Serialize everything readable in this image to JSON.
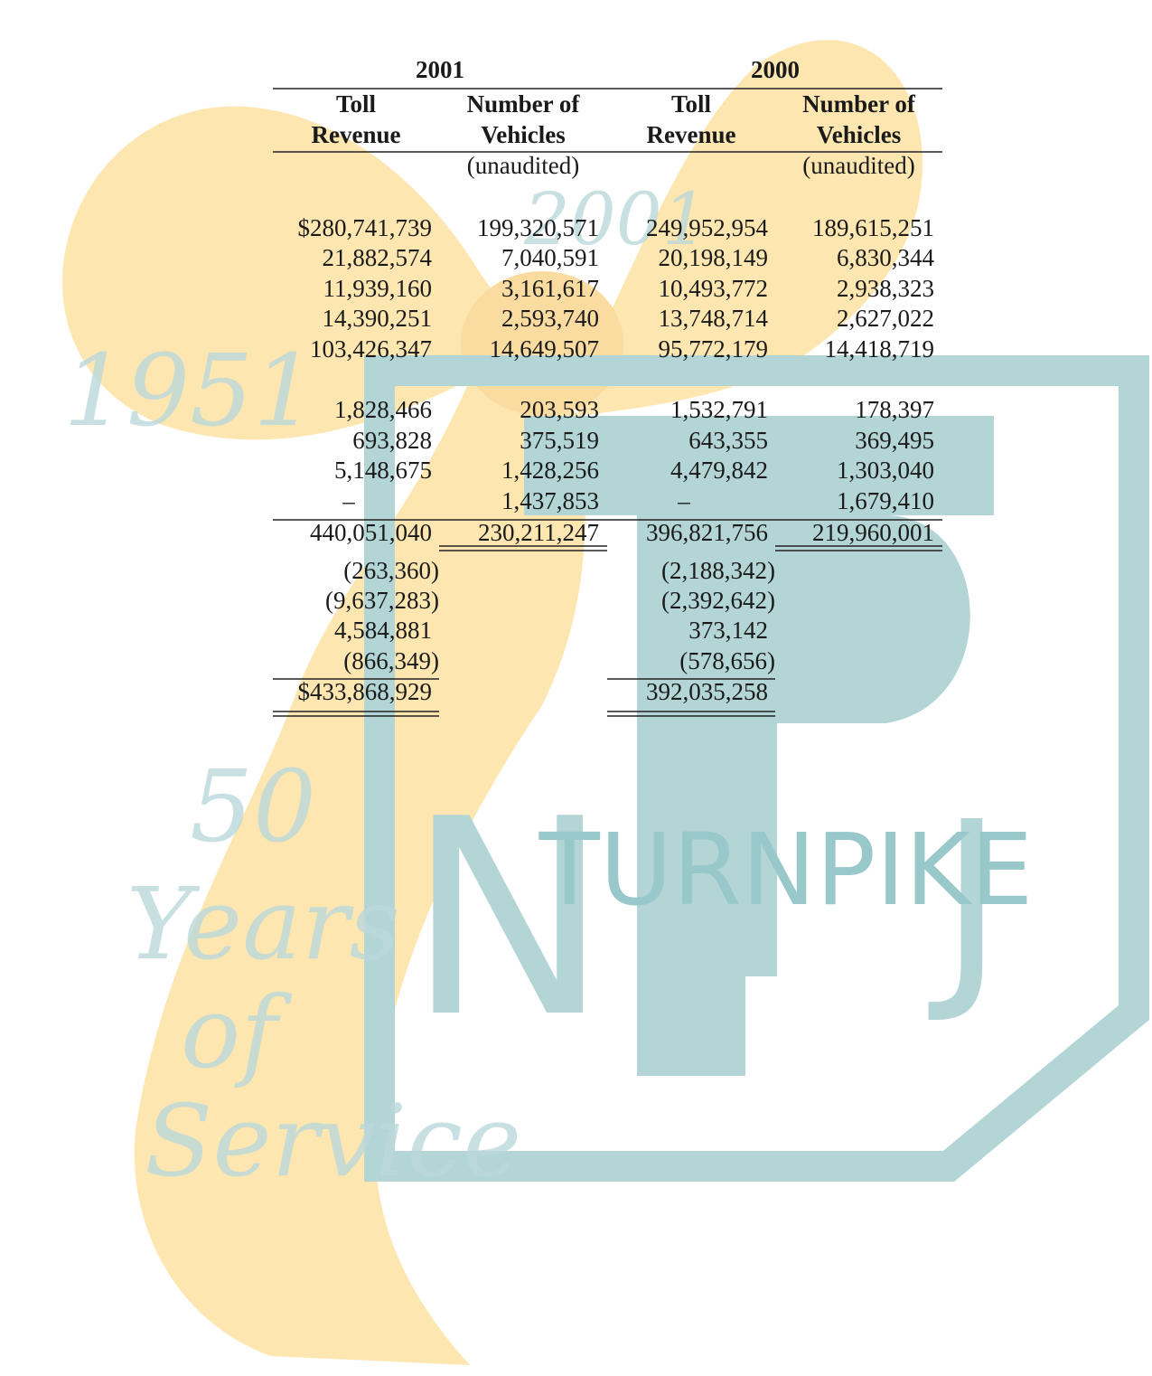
{
  "watermark": {
    "ribbon_texts": [
      "1951",
      "2001",
      "50",
      "Years",
      "of",
      "Service"
    ],
    "logo_text": "TURNPIKE",
    "logo_letters": [
      "N",
      "J"
    ]
  },
  "table": {
    "year_headers": [
      "2001",
      "2000"
    ],
    "column_headers": [
      [
        "Toll",
        "Revenue"
      ],
      [
        "Number of",
        "Vehicles"
      ],
      [
        "Toll",
        "Revenue"
      ],
      [
        "Number of",
        "Vehicles"
      ]
    ],
    "notes": [
      null,
      "(unaudited)",
      null,
      "(unaudited)"
    ],
    "rows": [
      [
        "$280,741,739",
        "199,320,571",
        "249,952,954",
        "189,615,251"
      ],
      [
        "21,882,574",
        "7,040,591",
        "20,198,149",
        "6,830,344"
      ],
      [
        "11,939,160",
        "3,161,617",
        "10,493,772",
        "2,938,323"
      ],
      [
        "14,390,251",
        "2,593,740",
        "13,748,714",
        "2,627,022"
      ],
      [
        "103,426,347",
        "14,649,507",
        "95,772,179",
        "14,418,719"
      ],
      [
        "1,828,466",
        "203,593",
        "1,532,791",
        "178,397"
      ],
      [
        "693,828",
        "375,519",
        "643,355",
        "369,495"
      ],
      [
        "5,148,675",
        "1,428,256",
        "4,479,842",
        "1,303,040"
      ],
      [
        "–",
        "1,437,853",
        "–",
        "1,679,410"
      ],
      [
        "440,051,040",
        "230,211,247",
        "396,821,756",
        "219,960,001"
      ],
      [
        "(263,360)",
        null,
        "(2,188,342)",
        null
      ],
      [
        "(9,637,283)",
        null,
        "(2,392,642)",
        null
      ],
      [
        "4,584,881",
        null,
        "373,142",
        null
      ],
      [
        "(866,349)",
        null,
        "(578,656)",
        null
      ],
      [
        "$433,868,929",
        null,
        "392,035,258",
        null
      ]
    ]
  }
}
